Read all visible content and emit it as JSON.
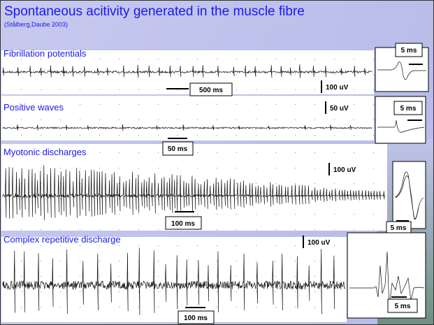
{
  "title": "Spontaneous acitivity generated in the muscle fibre",
  "subtitle": "(Stålberg,Daube 2003)",
  "panels": [
    {
      "label": "Fibrillation potentials",
      "time_scale": "500 ms",
      "amplitude_scale": "100 uV",
      "inset_scale": "5 ms"
    },
    {
      "label": "Positive waves",
      "time_scale": "50 ms",
      "amplitude_scale": "50 uV",
      "inset_scale": "5 ms"
    },
    {
      "label": "Myotonic discharges",
      "time_scale": "100 ms",
      "amplitude_scale": "100 uV",
      "inset_scale": "5 ms"
    },
    {
      "label": "Complex repetitive discharge",
      "time_scale": "100 ms",
      "amplitude_scale": "100 uV",
      "inset_scale": "5 ms"
    }
  ]
}
